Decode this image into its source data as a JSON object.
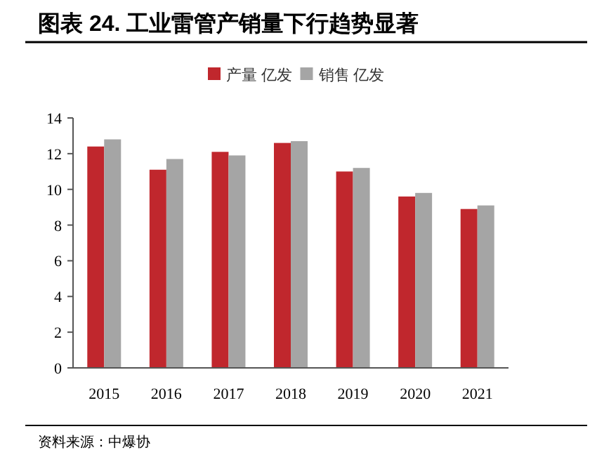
{
  "chart_data": {
    "type": "bar",
    "title": "图表 24. 工业雷管产销量下行趋势显著",
    "categories": [
      "2015",
      "2016",
      "2017",
      "2018",
      "2019",
      "2020",
      "2021"
    ],
    "series": [
      {
        "name": "产量 亿发",
        "color": "#c0272d",
        "values": [
          12.4,
          11.1,
          12.1,
          12.6,
          11.0,
          9.6,
          8.9
        ]
      },
      {
        "name": "销售 亿发",
        "color": "#a5a5a5",
        "values": [
          12.8,
          11.7,
          11.9,
          12.7,
          11.2,
          9.8,
          9.1
        ]
      }
    ],
    "ylim": [
      0,
      14
    ],
    "yticks": [
      0,
      2,
      4,
      6,
      8,
      10,
      12,
      14
    ],
    "grid": false,
    "legend": "top",
    "annotations": [
      "资料来源：中爆协"
    ]
  }
}
